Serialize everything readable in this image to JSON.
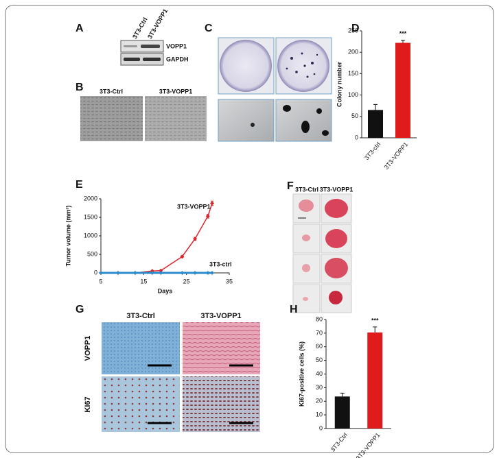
{
  "figure": {
    "A": {
      "letter": "A",
      "lanes": [
        "3T3-Ctrl",
        "3T3-VOPP1"
      ],
      "bands": [
        "VOPP1",
        "GAPDH"
      ]
    },
    "B": {
      "letter": "B",
      "columns": [
        "3T3-Ctrl",
        "3T3-VOPP1"
      ]
    },
    "C": {
      "letter": "C"
    },
    "F": {
      "letter": "F",
      "columns": [
        "3T3-Ctrl",
        "3T3-VOPP1"
      ]
    },
    "G": {
      "letter": "G",
      "columns": [
        "3T3-Ctrl",
        "3T3-VOPP1"
      ],
      "rows": [
        "VOPP1",
        "KI67"
      ]
    }
  },
  "chart_data": [
    {
      "type": "bar",
      "panel": "D",
      "y_label": "Colony number",
      "annotation": "***",
      "categories": [
        "3T3-ctrl",
        "3T3-VOPP1"
      ],
      "values": [
        65,
        222
      ],
      "errors": [
        13,
        6
      ],
      "colors": [
        "#111111",
        "#e01b1b"
      ],
      "ylim": [
        0,
        250
      ],
      "yticks": [
        0,
        50,
        100,
        150,
        200,
        250
      ]
    },
    {
      "type": "line",
      "panel": "E",
      "y_label": "Tumor volume (mm³)",
      "x_label": "Days",
      "x": [
        5,
        9,
        13,
        17,
        19,
        24,
        27,
        30,
        31
      ],
      "series": [
        {
          "name": "3T3-VOPP1",
          "color": "#d9262c",
          "values": [
            0,
            0,
            0,
            50,
            60,
            440,
            920,
            1530,
            1880
          ],
          "errors": [
            0,
            0,
            0,
            10,
            10,
            30,
            40,
            50,
            60
          ]
        },
        {
          "name": "3T3-ctrl",
          "color": "#2e8bc9",
          "values": [
            0,
            0,
            0,
            0,
            0,
            0,
            0,
            0,
            0
          ],
          "errors": [
            0,
            0,
            0,
            0,
            0,
            0,
            0,
            0,
            0
          ]
        }
      ],
      "xlim": [
        5,
        35
      ],
      "xticks": [
        5,
        15,
        25,
        35
      ],
      "ylim": [
        0,
        2000
      ],
      "yticks": [
        0,
        500,
        1000,
        1500,
        2000
      ]
    },
    {
      "type": "bar",
      "panel": "H",
      "y_label": "Ki67-positive cells (%)",
      "annotation": "***",
      "categories": [
        "3T3-Ctrl",
        "3T3-VOPP1"
      ],
      "values": [
        23.5,
        70.5
      ],
      "errors": [
        2.5,
        4
      ],
      "colors": [
        "#111111",
        "#e01b1b"
      ],
      "ylim": [
        0,
        80
      ],
      "yticks": [
        0,
        10,
        20,
        30,
        40,
        50,
        60,
        70,
        80
      ]
    }
  ]
}
